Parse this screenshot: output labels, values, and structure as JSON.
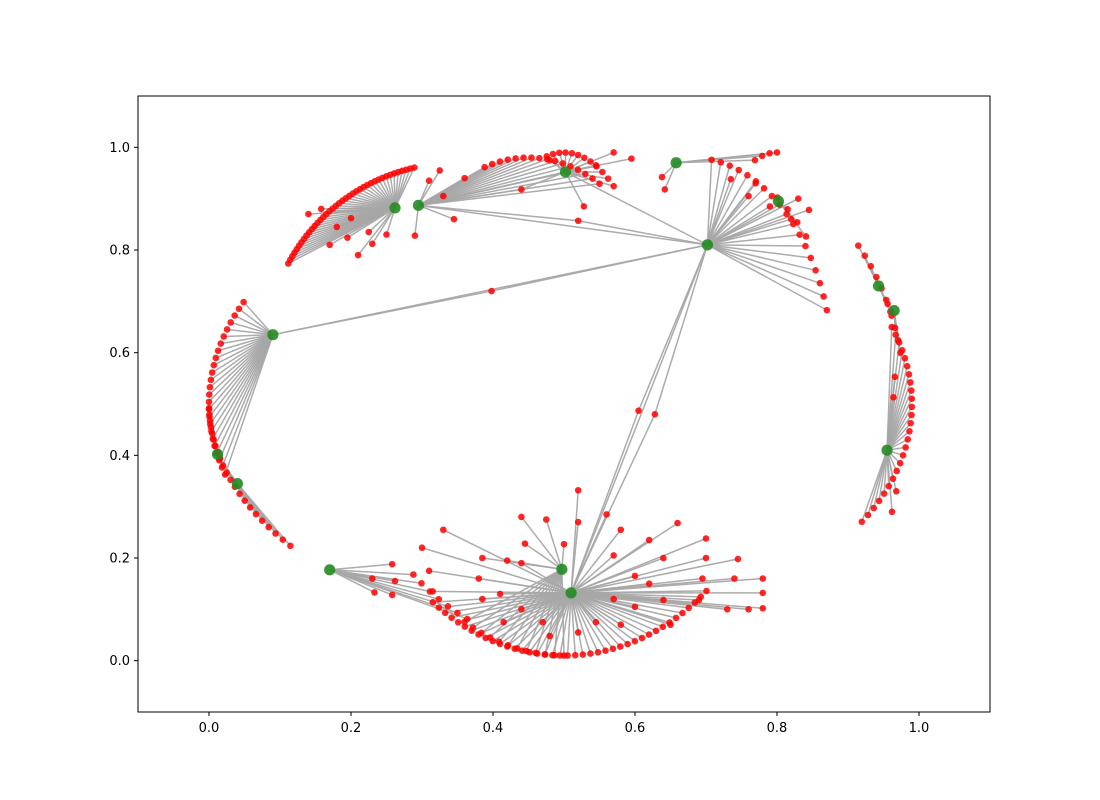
{
  "chart_data": {
    "type": "network",
    "title": "",
    "xlabel": "",
    "ylabel": "",
    "xlim": [
      -0.1,
      1.1
    ],
    "ylim": [
      -0.1,
      1.1
    ],
    "grid": false,
    "xticks": [
      "0.0",
      "0.2",
      "0.4",
      "0.6",
      "0.8",
      "1.0"
    ],
    "yticks": [
      "0.0",
      "0.2",
      "0.4",
      "0.6",
      "0.8",
      "1.0"
    ],
    "colors": {
      "hub": "#228b22",
      "leaf": "#ff0000",
      "edge": "#a6a6a6",
      "axes": "#000000"
    },
    "hubs": [
      {
        "x": 0.262,
        "y": 0.882
      },
      {
        "x": 0.295,
        "y": 0.887
      },
      {
        "x": 0.502,
        "y": 0.952
      },
      {
        "x": 0.658,
        "y": 0.97
      },
      {
        "x": 0.702,
        "y": 0.81
      },
      {
        "x": 0.802,
        "y": 0.895
      },
      {
        "x": 0.943,
        "y": 0.73
      },
      {
        "x": 0.965,
        "y": 0.682
      },
      {
        "x": 0.955,
        "y": 0.41
      },
      {
        "x": 0.09,
        "y": 0.635
      },
      {
        "x": 0.012,
        "y": 0.402
      },
      {
        "x": 0.04,
        "y": 0.345
      },
      {
        "x": 0.17,
        "y": 0.177
      },
      {
        "x": 0.497,
        "y": 0.178
      },
      {
        "x": 0.51,
        "y": 0.132
      }
    ],
    "hub_links": [
      [
        4,
        9
      ],
      [
        4,
        14
      ],
      [
        4,
        1
      ],
      [
        4,
        2
      ],
      [
        2,
        1
      ]
    ],
    "intermediates": [
      {
        "x": 0.398,
        "y": 0.72,
        "a": 9,
        "b": 4
      },
      {
        "x": 0.605,
        "y": 0.487,
        "a": 14,
        "b": 4
      },
      {
        "x": 0.628,
        "y": 0.48,
        "a": 14,
        "b": 4
      },
      {
        "x": 0.52,
        "y": 0.857,
        "a": 1,
        "b": 4
      },
      {
        "x": 0.44,
        "y": 0.918,
        "a": 1,
        "b": 2
      }
    ],
    "clusters": [
      {
        "hub": 0,
        "arc": {
          "cx": 0.35,
          "cy": 0.6,
          "rx": 0.27,
          "ry": 0.37,
          "a0": 103,
          "a1": 152,
          "n": 40
        },
        "inner": [
          [
            0.158,
            0.88
          ],
          [
            0.2,
            0.862
          ],
          [
            0.225,
            0.835
          ],
          [
            0.195,
            0.824
          ],
          [
            0.23,
            0.812
          ],
          [
            0.18,
            0.845
          ],
          [
            0.21,
            0.79
          ],
          [
            0.25,
            0.83
          ],
          [
            0.14,
            0.87
          ],
          [
            0.17,
            0.81
          ]
        ]
      },
      {
        "hub": 1,
        "arc": {
          "cx": 0.45,
          "cy": 0.6,
          "rx": 0.2,
          "ry": 0.38,
          "a0": 60,
          "a1": 108,
          "n": 16
        },
        "inner": [
          [
            0.31,
            0.935
          ],
          [
            0.33,
            0.905
          ],
          [
            0.345,
            0.86
          ],
          [
            0.29,
            0.828
          ],
          [
            0.36,
            0.94
          ],
          [
            0.325,
            0.955
          ]
        ]
      },
      {
        "hub": 2,
        "arc": {
          "cx": 0.5,
          "cy": 0.5,
          "rx": 0.14,
          "ry": 0.49,
          "a0": 60,
          "a1": 100,
          "n": 12
        },
        "inner": [
          [
            0.528,
            0.885
          ],
          [
            0.595,
            0.978
          ],
          [
            0.57,
            0.99
          ],
          [
            0.545,
            0.965
          ],
          [
            0.48,
            0.975
          ]
        ]
      },
      {
        "hub": 3,
        "arc": {
          "cx": 0.8,
          "cy": 0.55,
          "rx": 0.12,
          "ry": 0.44,
          "a0": 90,
          "a1": 105,
          "n": 4
        },
        "inner": [
          [
            0.638,
            0.942
          ],
          [
            0.642,
            0.918
          ]
        ]
      },
      {
        "hub": 4,
        "arc": {
          "cx": 0.68,
          "cy": 0.55,
          "rx": 0.2,
          "ry": 0.43,
          "a0": 18,
          "a1": 82,
          "n": 18
        },
        "inner": [
          [
            0.82,
            0.86
          ],
          [
            0.845,
            0.878
          ],
          [
            0.79,
            0.885
          ],
          [
            0.76,
            0.905
          ],
          [
            0.83,
            0.9
          ],
          [
            0.735,
            0.938
          ],
          [
            0.77,
            0.93
          ]
        ]
      },
      {
        "hub": 5,
        "arc": {
          "cx": 0.68,
          "cy": 0.55,
          "rx": 0.21,
          "ry": 0.43,
          "a0": 40,
          "a1": 55,
          "n": 4
        },
        "inner": []
      },
      {
        "hub": 6,
        "arc": {
          "cx": 0.7,
          "cy": 0.5,
          "rx": 0.28,
          "ry": 0.48,
          "a0": 22,
          "a1": 40,
          "n": 7
        },
        "inner": []
      },
      {
        "hub": 7,
        "arc": {
          "cx": 0.7,
          "cy": 0.5,
          "rx": 0.28,
          "ry": 0.48,
          "a0": 12,
          "a1": 24,
          "n": 5
        },
        "inner": []
      },
      {
        "hub": 8,
        "arc": {
          "cx": 0.6,
          "cy": 0.5,
          "rx": 0.39,
          "ry": 0.4,
          "a0": -35,
          "a1": 22,
          "n": 26
        },
        "inner": [
          [
            0.966,
            0.553
          ],
          [
            0.964,
            0.513
          ],
          [
            0.962,
            0.29
          ],
          [
            0.968,
            0.33
          ]
        ]
      },
      {
        "hub": 9,
        "arc": {
          "cx": 0.52,
          "cy": 0.5,
          "rx": 0.52,
          "ry": 0.47,
          "a0": 155,
          "a1": 197,
          "n": 25
        },
        "inner": []
      },
      {
        "hub": 10,
        "arc": {
          "cx": 0.6,
          "cy": 0.5,
          "rx": 0.6,
          "ry": 0.47,
          "a0": 181,
          "a1": 193,
          "n": 9
        },
        "inner": []
      },
      {
        "hub": 11,
        "arc": {
          "cx": 0.6,
          "cy": 0.5,
          "rx": 0.6,
          "ry": 0.47,
          "a0": 193,
          "a1": 216,
          "n": 14
        },
        "inner": []
      },
      {
        "hub": 12,
        "arc": {
          "cx": 0.5,
          "cy": 0.5,
          "rx": 0.3,
          "ry": 0.47,
          "a0": 225,
          "a1": 243,
          "n": 7
        },
        "inner": [
          [
            0.23,
            0.16
          ],
          [
            0.258,
            0.188
          ],
          [
            0.233,
            0.133
          ],
          [
            0.262,
            0.155
          ],
          [
            0.258,
            0.128
          ]
        ]
      },
      {
        "hub": 13,
        "arc": {
          "cx": 0.5,
          "cy": 0.5,
          "rx": 0.28,
          "ry": 0.49,
          "a0": 240,
          "a1": 270,
          "n": 12
        },
        "inner": [
          [
            0.44,
            0.28
          ],
          [
            0.475,
            0.275
          ],
          [
            0.5,
            0.227
          ],
          [
            0.385,
            0.2
          ],
          [
            0.42,
            0.195
          ],
          [
            0.445,
            0.228
          ]
        ]
      },
      {
        "hub": 14,
        "arc": {
          "cx": 0.5,
          "cy": 0.5,
          "rx": 0.3,
          "ry": 0.49,
          "a0": 232,
          "a1": 312,
          "n": 40
        },
        "inner": [
          [
            0.33,
            0.255
          ],
          [
            0.3,
            0.22
          ],
          [
            0.31,
            0.175
          ],
          [
            0.315,
            0.135
          ],
          [
            0.385,
            0.12
          ],
          [
            0.38,
            0.16
          ],
          [
            0.41,
            0.13
          ],
          [
            0.44,
            0.1
          ],
          [
            0.415,
            0.075
          ],
          [
            0.47,
            0.075
          ],
          [
            0.48,
            0.048
          ],
          [
            0.52,
            0.055
          ],
          [
            0.545,
            0.075
          ],
          [
            0.57,
            0.12
          ],
          [
            0.58,
            0.07
          ],
          [
            0.6,
            0.105
          ],
          [
            0.62,
            0.15
          ],
          [
            0.6,
            0.165
          ],
          [
            0.57,
            0.205
          ],
          [
            0.58,
            0.255
          ],
          [
            0.56,
            0.285
          ],
          [
            0.52,
            0.27
          ],
          [
            0.52,
            0.332
          ],
          [
            0.62,
            0.235
          ],
          [
            0.64,
            0.2
          ],
          [
            0.66,
            0.268
          ],
          [
            0.7,
            0.238
          ],
          [
            0.7,
            0.2
          ],
          [
            0.695,
            0.16
          ],
          [
            0.74,
            0.16
          ],
          [
            0.78,
            0.16
          ],
          [
            0.78,
            0.132
          ],
          [
            0.745,
            0.198
          ],
          [
            0.69,
            0.118
          ],
          [
            0.73,
            0.1
          ],
          [
            0.76,
            0.1
          ],
          [
            0.78,
            0.102
          ],
          [
            0.64,
            0.118
          ],
          [
            0.44,
            0.19
          ],
          [
            0.65,
            0.07
          ]
        ]
      }
    ]
  }
}
